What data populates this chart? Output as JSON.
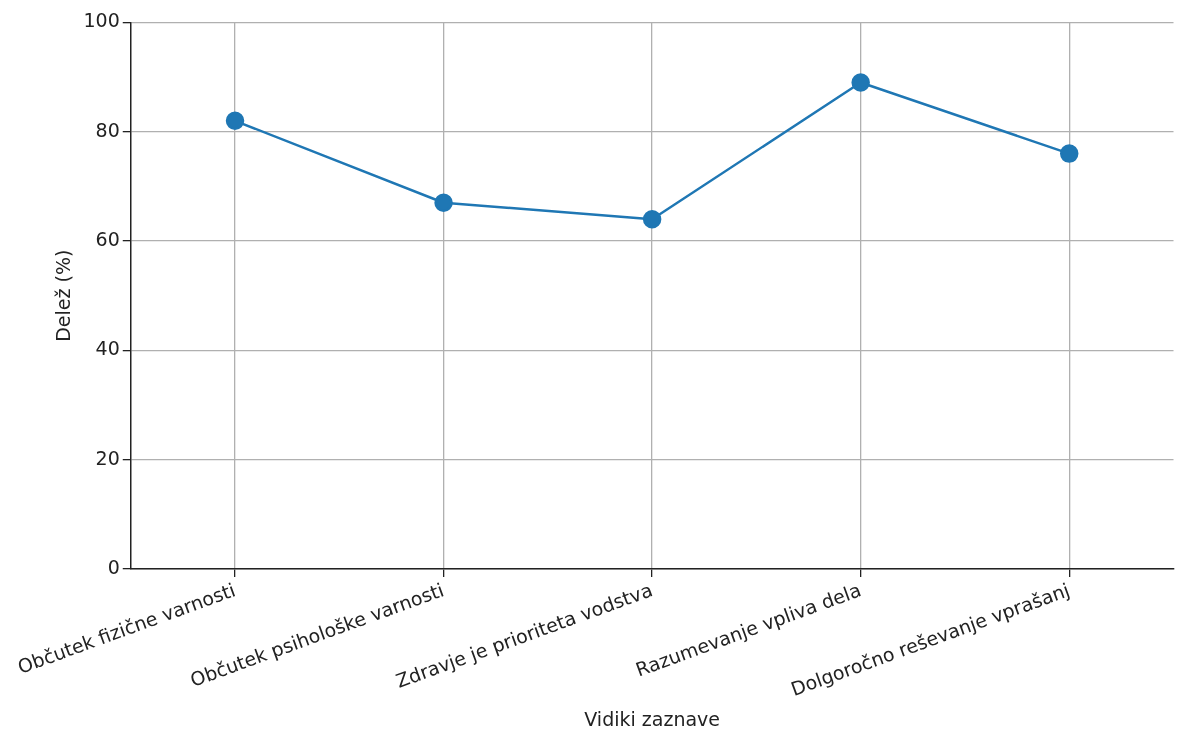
{
  "chart_data": {
    "type": "line",
    "xlabel": "Vidiki zaznave",
    "ylabel": "Delež (%)",
    "categories": [
      "Občutek fizične varnosti",
      "Občutek psihološke varnosti",
      "Zdravje je prioriteta vodstva",
      "Razumevanje vpliva dela",
      "Dolgoročno reševanje vprašanj"
    ],
    "series": [
      {
        "color": "#1f77b4",
        "values": [
          82,
          67,
          64,
          89,
          76
        ]
      }
    ],
    "ylim": [
      0,
      100
    ],
    "yticks": [
      0,
      20,
      40,
      60,
      80,
      100
    ],
    "grid": true,
    "legend": false,
    "marker": "circle",
    "line_style": "solid"
  }
}
